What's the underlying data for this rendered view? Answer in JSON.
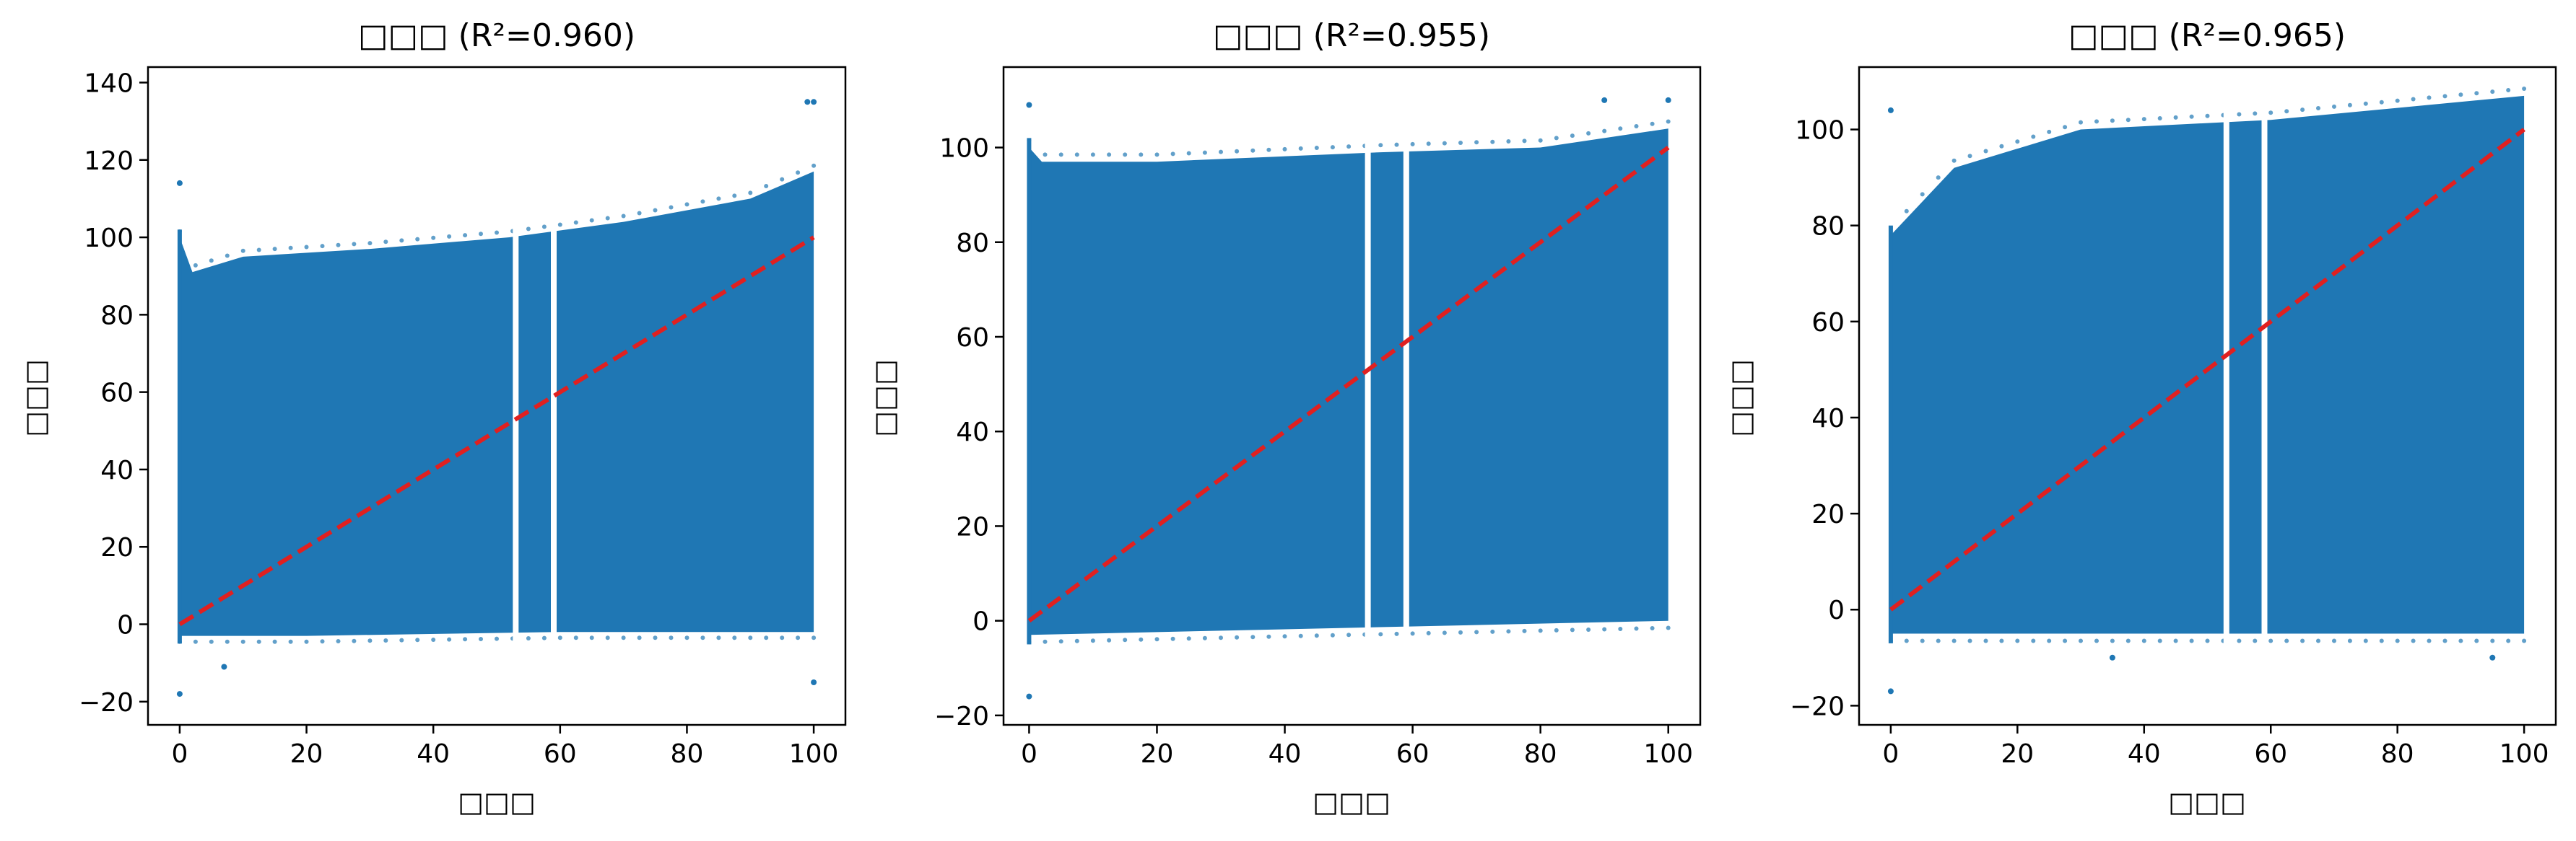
{
  "chart_data": [
    {
      "type": "scatter",
      "title": "□□□ (R²=0.960)",
      "xlabel": "□□□",
      "ylabel": "□□□",
      "xlim": [
        -5,
        105
      ],
      "ylim": [
        -26,
        144
      ],
      "xticks": [
        0,
        20,
        40,
        60,
        80,
        100
      ],
      "yticks": [
        -20,
        0,
        20,
        40,
        60,
        80,
        100,
        120,
        140
      ],
      "grid": false,
      "reference_line": {
        "x": [
          0,
          100
        ],
        "y": [
          0,
          100
        ],
        "style": "dashed",
        "color": "#e02020"
      },
      "point_color": "#1f77b4",
      "density": {
        "description": "dense band of points between a lower edge and an upper edge across x",
        "upper_edge": [
          [
            0,
            100
          ],
          [
            2,
            91
          ],
          [
            10,
            95
          ],
          [
            30,
            97
          ],
          [
            52,
            100
          ],
          [
            70,
            104
          ],
          [
            90,
            110
          ],
          [
            100,
            117
          ]
        ],
        "lower_edge": [
          [
            0,
            -3
          ],
          [
            20,
            -3
          ],
          [
            60,
            -2
          ],
          [
            100,
            -2
          ]
        ],
        "gaps_x": [
          53,
          59
        ]
      },
      "notable_points": [
        [
          0,
          114
        ],
        [
          0,
          -18
        ],
        [
          99,
          135
        ],
        [
          100,
          135
        ],
        [
          7,
          -11
        ],
        [
          100,
          -15
        ]
      ]
    },
    {
      "type": "scatter",
      "title": "□□□ (R²=0.955)",
      "xlabel": "□□□",
      "ylabel": "□□□",
      "xlim": [
        -4,
        105
      ],
      "ylim": [
        -22,
        117
      ],
      "xticks": [
        0,
        20,
        40,
        60,
        80,
        100
      ],
      "yticks": [
        -20,
        0,
        20,
        40,
        60,
        80,
        100
      ],
      "grid": false,
      "reference_line": {
        "x": [
          0,
          100
        ],
        "y": [
          0,
          100
        ],
        "style": "dashed",
        "color": "#e02020"
      },
      "point_color": "#1f77b4",
      "density": {
        "description": "dense band of points, sparser below y≈40",
        "upper_edge": [
          [
            0,
            100
          ],
          [
            2,
            97
          ],
          [
            20,
            97
          ],
          [
            55,
            99
          ],
          [
            80,
            100
          ],
          [
            100,
            104
          ]
        ],
        "lower_edge": [
          [
            0,
            -3
          ],
          [
            100,
            0
          ]
        ],
        "gaps_x": [
          53,
          59
        ]
      },
      "notable_points": [
        [
          0,
          109
        ],
        [
          0,
          -16
        ],
        [
          100,
          110
        ],
        [
          90,
          110
        ]
      ]
    },
    {
      "type": "scatter",
      "title": "□□□ (R²=0.965)",
      "xlabel": "□□□",
      "ylabel": "□□□",
      "xlim": [
        -5,
        105
      ],
      "ylim": [
        -24,
        113
      ],
      "xticks": [
        0,
        20,
        40,
        60,
        80,
        100
      ],
      "yticks": [
        -20,
        0,
        20,
        40,
        60,
        80,
        100
      ],
      "grid": false,
      "reference_line": {
        "x": [
          0,
          100
        ],
        "y": [
          0,
          100
        ],
        "style": "dashed",
        "color": "#e02020"
      },
      "point_color": "#1f77b4",
      "density": {
        "description": "dense band of points with a rising upper edge, sparser below y≈30",
        "upper_edge": [
          [
            0,
            78
          ],
          [
            10,
            92
          ],
          [
            30,
            100
          ],
          [
            60,
            102
          ],
          [
            100,
            107
          ]
        ],
        "lower_edge": [
          [
            0,
            -5
          ],
          [
            100,
            -5
          ]
        ],
        "gaps_x": [
          53,
          59
        ]
      },
      "notable_points": [
        [
          0,
          104
        ],
        [
          0,
          -17
        ],
        [
          35,
          -10
        ],
        [
          95,
          -10
        ]
      ]
    }
  ]
}
